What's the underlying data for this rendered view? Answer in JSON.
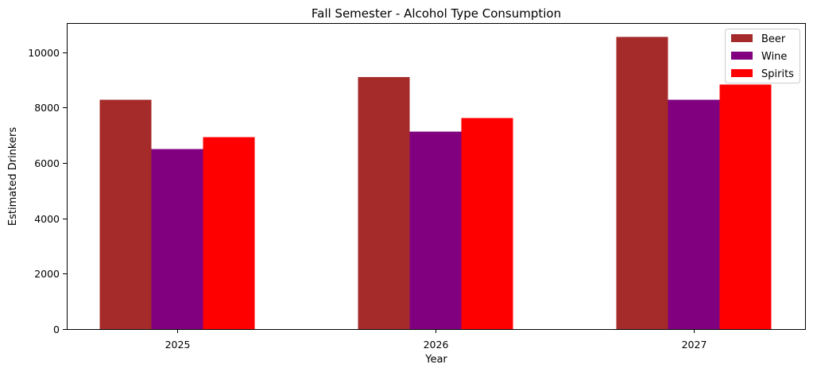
{
  "chart_data": {
    "type": "bar",
    "title": "Fall Semester - Alcohol Type Consumption",
    "xlabel": "Year",
    "ylabel": "Estimated Drinkers",
    "categories": [
      "2025",
      "2026",
      "2027"
    ],
    "series": [
      {
        "name": "Beer",
        "color": "#a52a2a",
        "values": [
          8280,
          9100,
          10550
        ]
      },
      {
        "name": "Wine",
        "color": "#800080",
        "values": [
          6500,
          7130,
          8280
        ]
      },
      {
        "name": "Spirits",
        "color": "#ff0000",
        "values": [
          6930,
          7620,
          8830
        ]
      }
    ],
    "ylim": [
      0,
      11050
    ],
    "yticks": [
      0,
      2000,
      4000,
      6000,
      8000,
      10000
    ],
    "ytick_labels": [
      "0",
      "2000",
      "4000",
      "6000",
      "8000",
      "10000"
    ],
    "grid": false,
    "legend_position": "top-right"
  }
}
